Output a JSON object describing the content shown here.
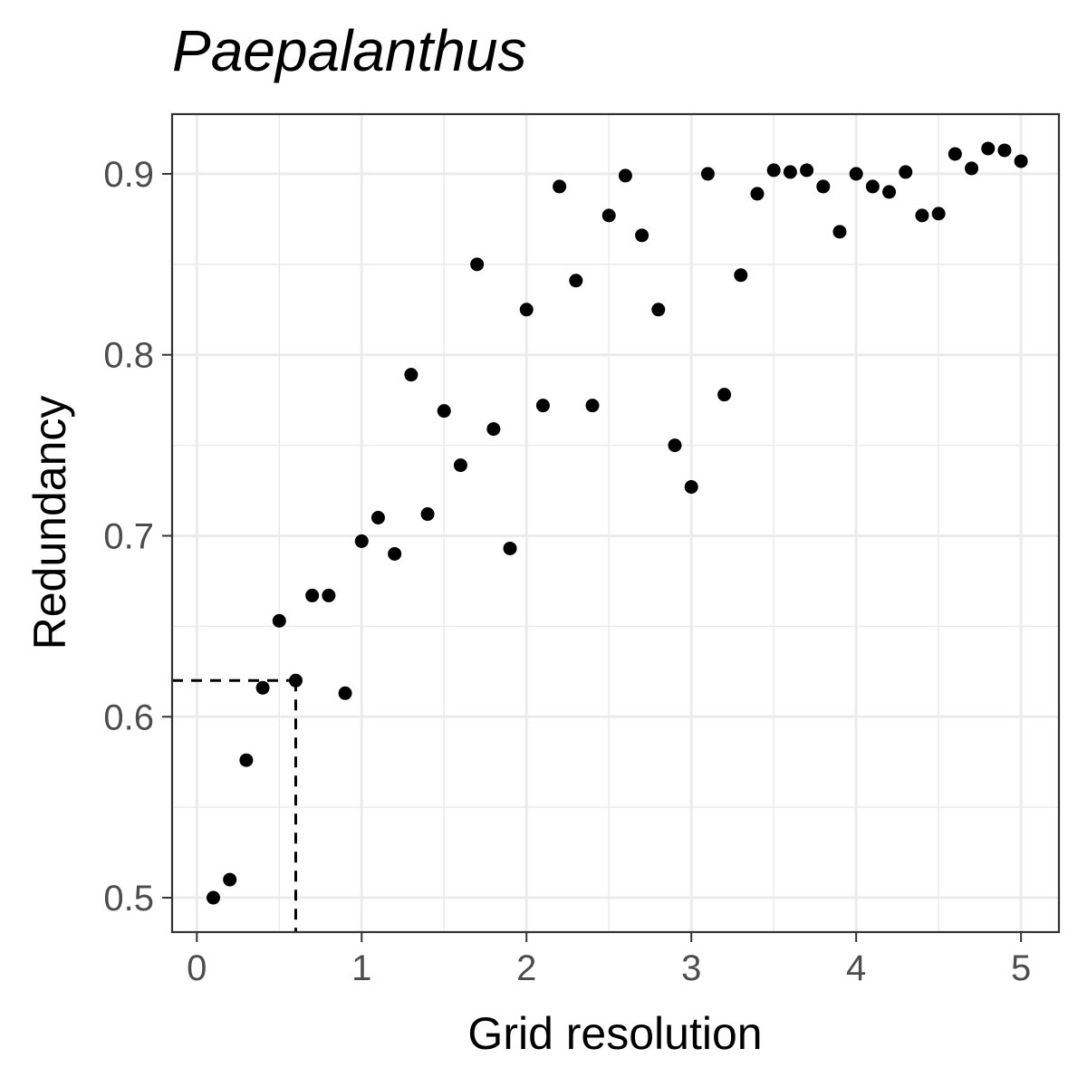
{
  "chart_data": {
    "type": "scatter",
    "title": "Paepalanthus",
    "xlabel": "Grid resolution",
    "ylabel": "Redundancy",
    "xlim": [
      -0.15,
      5.23
    ],
    "ylim": [
      0.481,
      0.933
    ],
    "x_ticks": [
      0,
      1,
      2,
      3,
      4,
      5
    ],
    "y_ticks": [
      0.5,
      0.6,
      0.7,
      0.8,
      0.9
    ],
    "x_tick_labels": [
      "0",
      "1",
      "2",
      "3",
      "4",
      "5"
    ],
    "y_tick_labels": [
      "0.5",
      "0.6",
      "0.7",
      "0.8",
      "0.9"
    ],
    "grid": true,
    "reference_point": {
      "x": 0.6,
      "y": 0.62
    },
    "x": [
      0.1,
      0.2,
      0.3,
      0.4,
      0.5,
      0.6,
      0.7,
      0.8,
      0.9,
      1.0,
      1.1,
      1.2,
      1.3,
      1.4,
      1.5,
      1.6,
      1.7,
      1.8,
      1.9,
      2.0,
      2.1,
      2.2,
      2.3,
      2.4,
      2.5,
      2.6,
      2.7,
      2.8,
      2.9,
      3.0,
      3.1,
      3.2,
      3.3,
      3.4,
      3.5,
      3.6,
      3.7,
      3.8,
      3.9,
      4.0,
      4.1,
      4.2,
      4.3,
      4.4,
      4.5,
      4.6,
      4.7,
      4.8,
      4.9,
      5.0
    ],
    "y": [
      0.5,
      0.51,
      0.576,
      0.616,
      0.653,
      0.62,
      0.667,
      0.667,
      0.613,
      0.697,
      0.71,
      0.69,
      0.789,
      0.712,
      0.769,
      0.739,
      0.85,
      0.759,
      0.693,
      0.825,
      0.772,
      0.893,
      0.841,
      0.772,
      0.877,
      0.899,
      0.866,
      0.825,
      0.75,
      0.727,
      0.9,
      0.778,
      0.844,
      0.889,
      0.902,
      0.901,
      0.902,
      0.893,
      0.868,
      0.9,
      0.893,
      0.89,
      0.901,
      0.877,
      0.878,
      0.911,
      0.903,
      0.914,
      0.913,
      0.907
    ]
  }
}
